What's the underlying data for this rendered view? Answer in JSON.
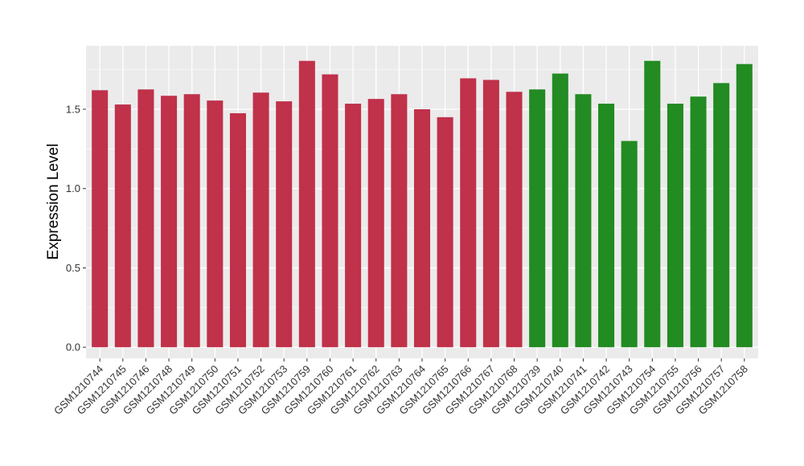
{
  "chart_data": {
    "type": "bar",
    "title": "",
    "xlabel": "",
    "ylabel": "Expression Level",
    "ylim": [
      -0.07,
      1.9
    ],
    "yticks": [
      0.0,
      0.5,
      1.0,
      1.5
    ],
    "ytick_labels": [
      "0.0",
      "0.5",
      "1.0",
      "1.5"
    ],
    "grid": true,
    "legend": "none",
    "panel_background": "#ebebeb",
    "grid_color": "#ffffff",
    "categories": [
      "GSM1210744",
      "GSM1210745",
      "GSM1210746",
      "GSM1210748",
      "GSM1210749",
      "GSM1210750",
      "GSM1210751",
      "GSM1210752",
      "GSM1210753",
      "GSM1210759",
      "GSM1210760",
      "GSM1210761",
      "GSM1210762",
      "GSM1210763",
      "GSM1210764",
      "GSM1210765",
      "GSM1210766",
      "GSM1210767",
      "GSM1210768",
      "GSM1210739",
      "GSM1210740",
      "GSM1210741",
      "GSM1210742",
      "GSM1210743",
      "GSM1210754",
      "GSM1210755",
      "GSM1210756",
      "GSM1210757",
      "GSM1210758"
    ],
    "values": [
      1.62,
      1.53,
      1.625,
      1.585,
      1.595,
      1.555,
      1.475,
      1.605,
      1.55,
      1.805,
      1.72,
      1.535,
      1.565,
      1.595,
      1.5,
      1.45,
      1.695,
      1.685,
      1.61,
      1.625,
      1.725,
      1.595,
      1.535,
      1.3,
      1.805,
      1.535,
      1.58,
      1.665,
      1.785
    ],
    "bar_colors": [
      "#c0314a",
      "#c0314a",
      "#c0314a",
      "#c0314a",
      "#c0314a",
      "#c0314a",
      "#c0314a",
      "#c0314a",
      "#c0314a",
      "#c0314a",
      "#c0314a",
      "#c0314a",
      "#c0314a",
      "#c0314a",
      "#c0314a",
      "#c0314a",
      "#c0314a",
      "#c0314a",
      "#c0314a",
      "#228b22",
      "#228b22",
      "#228b22",
      "#228b22",
      "#228b22",
      "#228b22",
      "#228b22",
      "#228b22",
      "#228b22",
      "#228b22"
    ]
  }
}
